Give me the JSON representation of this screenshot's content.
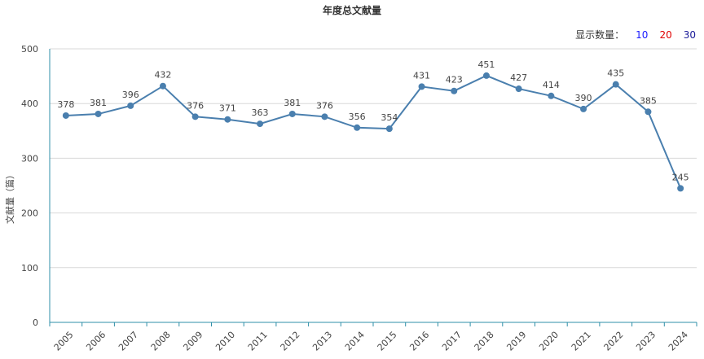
{
  "chart_title": "年度总文献量",
  "count_control": {
    "label": "显示数量：",
    "options": [
      "10",
      "20",
      "30"
    ]
  },
  "colors": {
    "line": "#4a7fae",
    "axis": "#2f8fa8",
    "grid": "#d9d9d9"
  },
  "chart_data": {
    "type": "line",
    "title": "年度总文献量",
    "ylabel": "文献量（篇）",
    "xlabel": "",
    "x": [
      "2005",
      "2006",
      "2007",
      "2008",
      "2009",
      "2010",
      "2011",
      "2012",
      "2013",
      "2014",
      "2015",
      "2016",
      "2017",
      "2018",
      "2019",
      "2020",
      "2021",
      "2022",
      "2023",
      "2024"
    ],
    "values": [
      378,
      381,
      396,
      432,
      376,
      371,
      363,
      381,
      376,
      356,
      354,
      431,
      423,
      451,
      427,
      414,
      390,
      435,
      385,
      245
    ],
    "ylim": [
      0,
      500
    ],
    "yticks": [
      0,
      100,
      200,
      300,
      400,
      500
    ],
    "grid": true,
    "data_labels": true
  }
}
